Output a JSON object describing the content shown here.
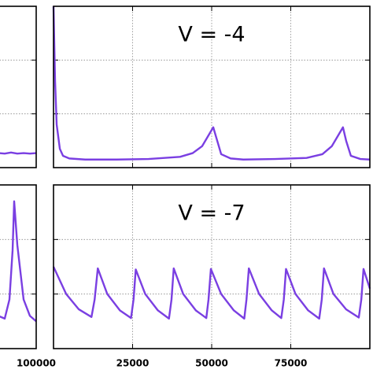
{
  "chart_data": [
    {
      "type": "line",
      "color": "#7a3fe2",
      "grid": true,
      "xlim": [
        0,
        100000
      ],
      "ylim": [
        0,
        3
      ],
      "xticks": [
        100000
      ],
      "yticks": [
        1,
        2
      ],
      "x": [
        88000,
        90000,
        92000,
        94000,
        96000,
        98000,
        100000
      ],
      "values": [
        0.27,
        0.26,
        0.28,
        0.26,
        0.27,
        0.26,
        0.27
      ]
    },
    {
      "type": "line",
      "title": "V = -4",
      "color": "#7a3fe2",
      "grid": true,
      "xlim": [
        0,
        100000
      ],
      "ylim": [
        0,
        3
      ],
      "xticks": [
        25000,
        50000,
        75000
      ],
      "yticks": [
        1,
        2
      ],
      "x": [
        0,
        500,
        1000,
        2000,
        3000,
        5000,
        10000,
        20000,
        30000,
        40000,
        44000,
        47000,
        49000,
        50500,
        51500,
        53000,
        56000,
        60000,
        70000,
        80000,
        85000,
        88000,
        90000,
        91500,
        92500,
        94000,
        97000,
        100000
      ],
      "values": [
        3.0,
        1.6,
        0.8,
        0.35,
        0.22,
        0.17,
        0.15,
        0.15,
        0.16,
        0.2,
        0.27,
        0.4,
        0.6,
        0.75,
        0.55,
        0.25,
        0.17,
        0.15,
        0.16,
        0.18,
        0.25,
        0.4,
        0.6,
        0.75,
        0.5,
        0.22,
        0.16,
        0.15
      ]
    },
    {
      "type": "line",
      "color": "#7a3fe2",
      "grid": true,
      "xlim": [
        0,
        100000
      ],
      "ylim": [
        0,
        3
      ],
      "xticks": [
        100000
      ],
      "yticks": [
        1,
        2
      ],
      "x": [
        88000,
        90000,
        91500,
        92500,
        93000,
        94000,
        96000,
        98000,
        100000
      ],
      "values": [
        0.6,
        0.55,
        0.9,
        1.8,
        2.7,
        1.9,
        0.9,
        0.6,
        0.5
      ]
    },
    {
      "type": "line",
      "title": "V = -7",
      "color": "#7a3fe2",
      "grid": true,
      "xlim": [
        0,
        100000
      ],
      "ylim": [
        0,
        3
      ],
      "xticks": [
        25000,
        50000,
        75000
      ],
      "yticks": [
        1,
        2
      ],
      "x": [
        0,
        4000,
        8000,
        12000,
        13000,
        14000,
        17000,
        21000,
        24500,
        25300,
        26000,
        29000,
        33000,
        36500,
        37300,
        38000,
        41000,
        45000,
        48300,
        49000,
        49750,
        53000,
        57000,
        60300,
        61000,
        61750,
        65000,
        69000,
        72000,
        72800,
        73500,
        76500,
        80500,
        84000,
        84800,
        85500,
        88500,
        92500,
        96500,
        97300,
        98000,
        100000
      ],
      "values": [
        1.5,
        1.0,
        0.72,
        0.58,
        0.9,
        1.47,
        1.0,
        0.7,
        0.56,
        0.9,
        1.45,
        1.0,
        0.7,
        0.55,
        0.9,
        1.47,
        1.0,
        0.7,
        0.56,
        0.9,
        1.46,
        1.0,
        0.7,
        0.55,
        0.9,
        1.47,
        1.0,
        0.7,
        0.56,
        0.9,
        1.46,
        1.0,
        0.7,
        0.55,
        0.9,
        1.47,
        1.0,
        0.72,
        0.57,
        0.9,
        1.46,
        1.1
      ]
    }
  ]
}
